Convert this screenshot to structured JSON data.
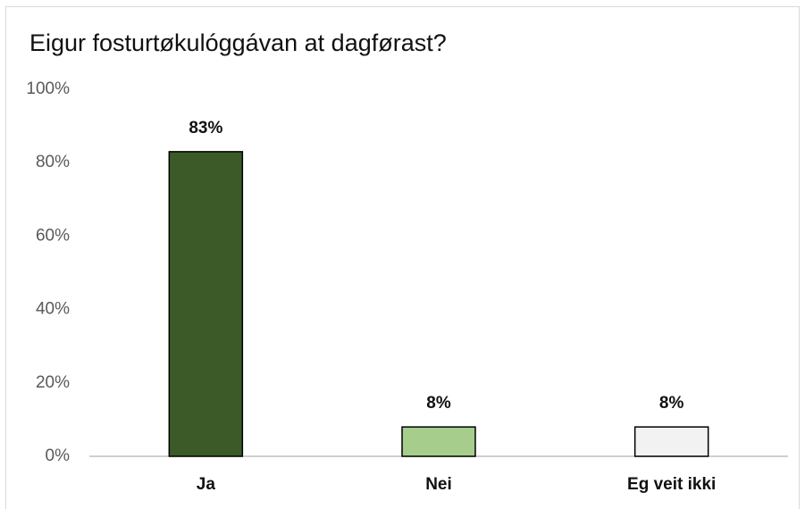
{
  "chart_data": {
    "type": "bar",
    "title": "Eigur fosturtøkulóggávan at dagførast?",
    "categories": [
      "Ja",
      "Nei",
      "Eg veit ikki"
    ],
    "values": [
      83,
      8,
      8
    ],
    "value_labels": [
      "83%",
      "8%",
      "8%"
    ],
    "colors": [
      "#3b5a28",
      "#a6cd8b",
      "#f2f2f2"
    ],
    "ylim": [
      0,
      100
    ],
    "yticks": [
      {
        "value": 0,
        "label": "0%"
      },
      {
        "value": 20,
        "label": "20%"
      },
      {
        "value": 40,
        "label": "40%"
      },
      {
        "value": 60,
        "label": "60%"
      },
      {
        "value": 80,
        "label": "80%"
      },
      {
        "value": 100,
        "label": "100%"
      }
    ],
    "grid": false
  }
}
